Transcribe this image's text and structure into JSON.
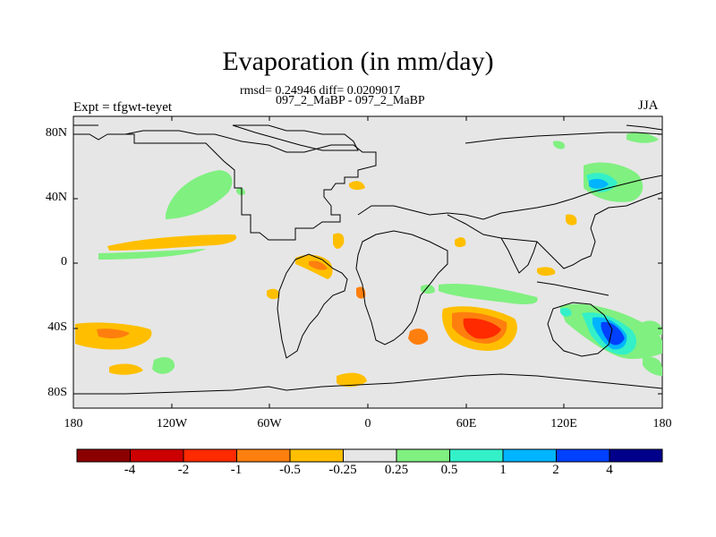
{
  "header": {
    "title": "Evaporation (in mm/day)",
    "stats": "rmsd= 0.24946 diff= 0.0209017",
    "experiment_name": "097_2_MaBP - 097_2_MaBP",
    "experiment_label": "Expt = tfgwt-teyet",
    "season": "JJA"
  },
  "map": {
    "lat_labels": [
      "80N",
      "40N",
      "0",
      "40S",
      "80S"
    ],
    "lon_labels": [
      "180",
      "120W",
      "60W",
      "0",
      "60E",
      "120E",
      "180"
    ],
    "background_color": "#e6e6e6"
  },
  "colorbar": {
    "labels": [
      "-4",
      "-2",
      "-1",
      "-0.5",
      "-0.25",
      "0.25",
      "0.5",
      "1",
      "2",
      "4"
    ],
    "colors": [
      "#8b0000",
      "#cc0000",
      "#ff2a00",
      "#ff7f0e",
      "#ffbf00",
      "#e6e6e6",
      "#80f080",
      "#33f0c8",
      "#00b4ff",
      "#0040ff",
      "#00008b"
    ]
  }
}
